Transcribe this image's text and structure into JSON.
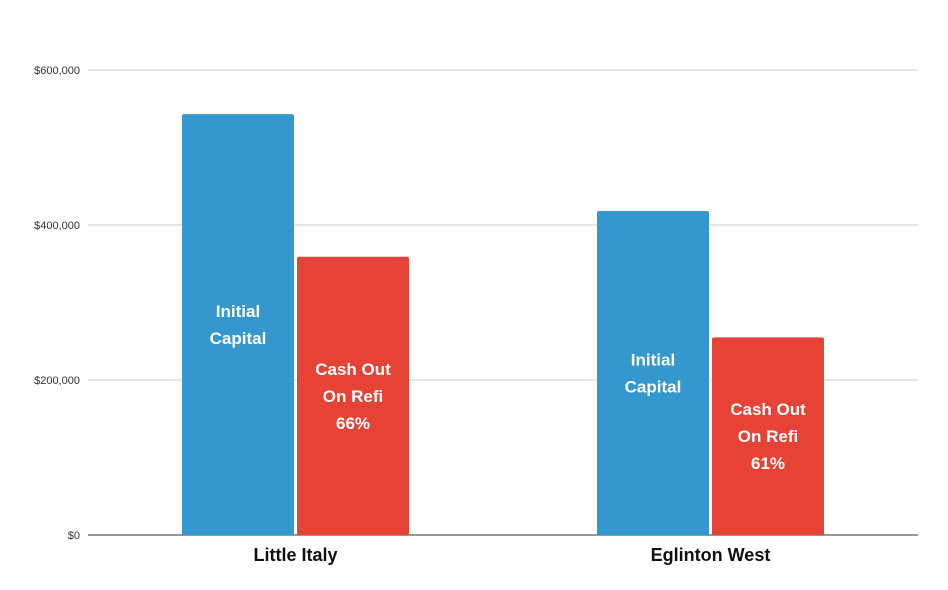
{
  "chart_data": {
    "type": "bar",
    "categories": [
      "Little Italy",
      "Eglinton West"
    ],
    "series": [
      {
        "values": [
          543000,
          418000
        ],
        "color": "#3498cf",
        "labels": [
          [
            "Initial",
            "Capital"
          ],
          [
            "Initial",
            "Capital"
          ]
        ]
      },
      {
        "values": [
          359000,
          255000
        ],
        "color": "#e74236",
        "labels": [
          [
            "Cash Out",
            "On Refi",
            "66%"
          ],
          [
            "Cash Out",
            "On Refi",
            "61%"
          ]
        ]
      }
    ],
    "ylim": [
      0,
      600000
    ],
    "yticks": [
      0,
      200000,
      400000,
      600000
    ],
    "ytick_labels": [
      "$0",
      "$200,000",
      "$400,000",
      "$600,000"
    ],
    "grid": true,
    "legend": "none"
  }
}
